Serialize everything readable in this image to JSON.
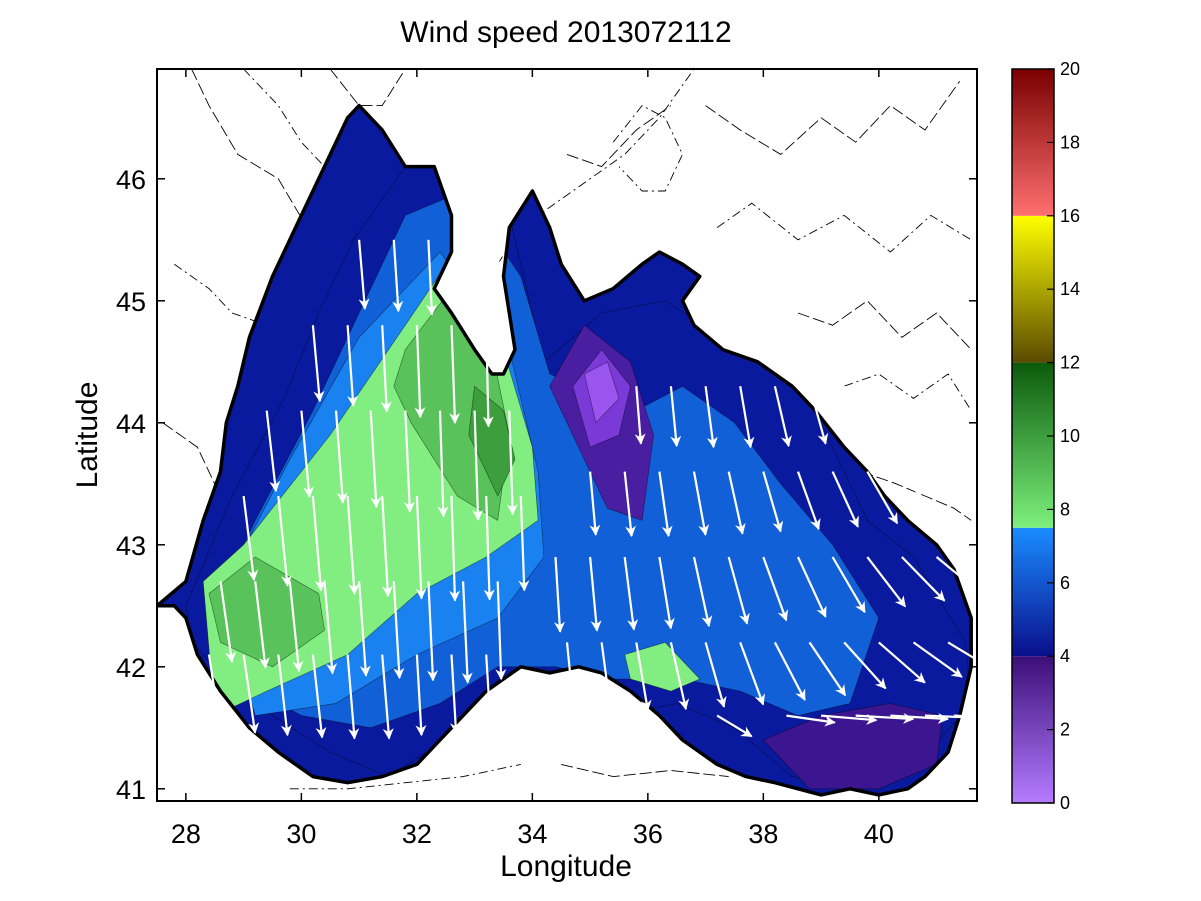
{
  "chart_data": {
    "type": "heatmap",
    "title": "Wind speed 2013072112",
    "xlabel": "Longitude",
    "ylabel": "Latitude",
    "xlim": [
      27.5,
      41.7
    ],
    "ylim": [
      40.9,
      46.9
    ],
    "x_ticks": [
      28,
      30,
      32,
      34,
      36,
      38,
      40
    ],
    "y_ticks": [
      41,
      42,
      43,
      44,
      45,
      46
    ],
    "grid": false,
    "colorbar": {
      "position": "right",
      "range": [
        0,
        20
      ],
      "ticks": [
        0,
        2,
        4,
        6,
        8,
        10,
        12,
        14,
        16,
        18,
        20
      ],
      "bands": [
        {
          "from": 0,
          "to": 4,
          "color_low": "#b57cff",
          "color_high": "#3b0f78"
        },
        {
          "from": 4,
          "to": 7.5,
          "color_low": "#0a0f8c",
          "color_high": "#1a8cff"
        },
        {
          "from": 7.5,
          "to": 12,
          "color_low": "#7df07d",
          "color_high": "#0b5a0b"
        },
        {
          "from": 12,
          "to": 16,
          "color_low": "#5a4a00",
          "color_high": "#ffff00"
        },
        {
          "from": 16,
          "to": 20,
          "color_low": "#ff7070",
          "color_high": "#7a0000"
        }
      ]
    },
    "regions": [
      {
        "level": 4.5,
        "color": "#0a1a9e",
        "lon": [
          28.0,
          28.8,
          29.7,
          30.3,
          30.9,
          31.8,
          32.6,
          33.5,
          34.2,
          35.2,
          36.3,
          37.6,
          38.8,
          39.8,
          40.6,
          41.5,
          41.6,
          40.5,
          39.5,
          38.5,
          37.5,
          36.5,
          35.5,
          34.5,
          33.5,
          32.5,
          31.5,
          30.5,
          29.5,
          28.7,
          28.1
        ],
        "lat": [
          42.5,
          43.4,
          44.2,
          44.9,
          45.5,
          46.1,
          46.3,
          45.9,
          44.5,
          44.9,
          45.0,
          44.6,
          44.2,
          43.2,
          42.9,
          42.2,
          41.7,
          41.1,
          41.0,
          41.1,
          41.5,
          41.7,
          41.6,
          41.9,
          41.8,
          41.4,
          41.1,
          41.3,
          41.6,
          41.9,
          42.2
        ]
      },
      {
        "level": 6,
        "color": "#1160d8",
        "lon": [
          28.4,
          29.2,
          30.2,
          31.0,
          31.8,
          32.8,
          33.8,
          34.3,
          35.8,
          36.6,
          37.5,
          38.3,
          39.2,
          40.0,
          39.5,
          38.6,
          37.6,
          36.6,
          35.4,
          34.4,
          33.4,
          32.4,
          31.2,
          30.0,
          28.9
        ],
        "lat": [
          42.4,
          43.2,
          44.1,
          44.9,
          45.7,
          45.9,
          45.2,
          44.4,
          44.1,
          44.3,
          44.0,
          43.5,
          43.0,
          42.4,
          41.7,
          41.6,
          41.8,
          41.9,
          41.9,
          42.0,
          42.0,
          41.7,
          41.5,
          41.6,
          41.9
        ]
      },
      {
        "level": 7,
        "color": "#1a82f0",
        "lon": [
          28.6,
          29.8,
          31.0,
          32.4,
          33.6,
          34.1,
          34.2,
          33.4,
          32.0,
          30.6,
          29.2
        ],
        "lat": [
          42.6,
          43.7,
          44.7,
          45.4,
          44.6,
          43.6,
          42.9,
          42.4,
          42.1,
          41.7,
          41.6
        ]
      },
      {
        "level": 8,
        "color": "#82ee82",
        "lon": [
          28.3,
          29.0,
          30.5,
          31.8,
          32.8,
          33.5,
          34.0,
          34.1,
          33.2,
          32.0,
          30.8,
          29.4,
          28.5
        ],
        "lat": [
          42.7,
          43.0,
          43.9,
          44.8,
          45.5,
          44.6,
          43.8,
          43.2,
          42.9,
          42.6,
          42.1,
          41.8,
          41.6
        ]
      },
      {
        "level": 9,
        "color": "#5ac25a",
        "lon": [
          31.8,
          32.6,
          33.3,
          33.6,
          33.4,
          32.7,
          31.9,
          31.6
        ],
        "lat": [
          44.6,
          45.1,
          44.6,
          43.9,
          43.2,
          43.4,
          44.0,
          44.3
        ]
      },
      {
        "level": 9.5,
        "color": "#3d9e3d",
        "lon": [
          33.0,
          33.5,
          33.7,
          33.4,
          32.9
        ],
        "lat": [
          44.3,
          44.1,
          43.7,
          43.4,
          43.9
        ]
      },
      {
        "level": 9,
        "color": "#5ac25a",
        "lon": [
          28.4,
          29.2,
          30.3,
          30.4,
          29.5,
          28.6
        ],
        "lat": [
          42.6,
          42.9,
          42.6,
          42.3,
          42.0,
          42.2
        ]
      },
      {
        "level": 8,
        "color": "#82ee82",
        "lon": [
          35.6,
          36.3,
          36.9,
          36.4,
          35.7
        ],
        "lat": [
          42.1,
          42.2,
          41.9,
          41.8,
          41.9
        ]
      },
      {
        "level": 4,
        "color": "#4a1ea0",
        "lon": [
          34.3,
          34.9,
          35.7,
          36.1,
          35.9,
          35.3,
          34.7
        ],
        "lat": [
          44.3,
          44.8,
          44.5,
          43.9,
          43.2,
          43.3,
          43.9
        ]
      },
      {
        "level": 3,
        "color": "#7a3ad8",
        "lon": [
          34.7,
          35.2,
          35.7,
          35.5,
          35.0
        ],
        "lat": [
          44.3,
          44.6,
          44.3,
          43.9,
          43.8
        ]
      },
      {
        "level": 2,
        "color": "#9955ee",
        "lon": [
          34.9,
          35.3,
          35.5,
          35.1
        ],
        "lat": [
          44.4,
          44.5,
          44.2,
          44.0
        ]
      },
      {
        "level": 3.5,
        "color": "#3b1690",
        "lon": [
          38.0,
          39.0,
          40.2,
          41.1,
          41.0,
          40.0,
          38.8
        ],
        "lat": [
          41.4,
          41.6,
          41.7,
          41.6,
          41.2,
          41.0,
          41.0
        ]
      },
      {
        "level": 3.8,
        "color": "#3c15a0",
        "lon": [
          28.0,
          28.2,
          28.4,
          28.1
        ],
        "lat": [
          44.6,
          44.8,
          44.3,
          44.2
        ]
      }
    ],
    "coastline": {
      "lon": [
        27.5,
        28.0,
        28.3,
        28.6,
        28.7,
        28.9,
        29.1,
        29.5,
        29.8,
        30.2,
        30.6,
        30.8,
        31.0,
        31.4,
        31.8,
        32.3,
        32.6,
        32.6,
        32.3,
        32.6,
        33.0,
        33.3,
        33.5,
        33.7,
        33.6,
        33.5,
        33.6,
        34.0,
        34.3,
        34.5,
        34.9,
        35.4,
        35.9,
        36.2,
        36.6,
        36.9,
        36.6,
        36.8,
        37.3,
        37.9,
        38.5,
        38.9,
        39.4,
        39.8,
        40.1,
        40.5,
        41.0,
        41.3,
        41.6,
        41.6,
        41.4,
        41.2,
        40.8,
        40.5,
        40.0,
        39.5,
        39.0,
        38.6,
        38.2,
        37.7,
        37.2,
        36.6,
        36.2,
        35.7,
        35.2,
        34.8,
        34.3,
        33.8,
        33.2,
        32.6,
        32.0,
        31.4,
        30.8,
        30.2,
        29.6,
        29.1,
        28.6,
        28.2,
        28.0,
        27.8,
        27.5
      ],
      "lat": [
        42.5,
        42.7,
        43.2,
        43.6,
        44.0,
        44.3,
        44.7,
        45.2,
        45.5,
        45.9,
        46.3,
        46.5,
        46.6,
        46.4,
        46.1,
        46.1,
        45.7,
        45.4,
        45.1,
        44.9,
        44.6,
        44.4,
        44.4,
        44.6,
        44.9,
        45.2,
        45.6,
        45.9,
        45.6,
        45.3,
        45.0,
        45.1,
        45.3,
        45.4,
        45.3,
        45.2,
        45.0,
        44.8,
        44.6,
        44.5,
        44.3,
        44.1,
        43.8,
        43.6,
        43.4,
        43.2,
        43.0,
        42.8,
        42.4,
        42.0,
        41.6,
        41.3,
        41.1,
        41.0,
        40.95,
        41.0,
        40.95,
        41.0,
        41.05,
        41.1,
        41.2,
        41.4,
        41.6,
        41.8,
        41.95,
        42.0,
        41.95,
        42.0,
        41.8,
        41.5,
        41.2,
        41.1,
        41.05,
        41.1,
        41.3,
        41.5,
        41.8,
        42.1,
        42.4,
        42.5,
        42.5
      ]
    },
    "wind_vectors": {
      "note": "unit: m/s (u east, v north)",
      "lon": [
        28.4,
        29.0,
        29.6,
        30.2,
        30.8,
        31.4,
        32.0,
        32.6,
        33.2,
        28.6,
        29.2,
        29.8,
        30.4,
        31.0,
        31.6,
        32.2,
        32.8,
        33.4,
        29.0,
        29.6,
        30.2,
        30.8,
        31.4,
        32.0,
        32.6,
        33.2,
        33.8,
        29.4,
        30.0,
        30.6,
        31.2,
        31.8,
        32.4,
        33.0,
        33.6,
        30.2,
        30.8,
        31.4,
        32.0,
        32.6,
        33.2,
        31.0,
        31.6,
        32.2,
        32.8,
        33.4,
        34.6,
        35.2,
        35.8,
        36.4,
        37.0,
        37.6,
        38.2,
        38.8,
        39.4,
        40.0,
        40.6,
        41.2,
        34.4,
        35.0,
        35.6,
        36.2,
        36.8,
        37.4,
        38.0,
        38.6,
        39.2,
        39.8,
        40.4,
        41.0,
        35.0,
        35.6,
        36.2,
        36.8,
        37.4,
        38.0,
        38.6,
        39.2,
        39.8,
        40.4,
        35.8,
        36.4,
        37.0,
        37.6,
        38.2,
        38.8,
        39.4,
        40.0,
        37.2,
        38.4,
        39.0,
        39.6,
        40.2,
        40.8,
        41.3
      ],
      "lat": [
        42.1,
        42.1,
        42.1,
        42.1,
        42.1,
        42.1,
        42.1,
        42.1,
        42.1,
        42.7,
        42.7,
        42.7,
        42.7,
        42.7,
        42.7,
        42.7,
        42.7,
        42.7,
        43.4,
        43.4,
        43.4,
        43.4,
        43.4,
        43.4,
        43.4,
        43.4,
        43.4,
        44.1,
        44.1,
        44.1,
        44.1,
        44.1,
        44.1,
        44.1,
        44.1,
        44.8,
        44.8,
        44.8,
        44.8,
        44.8,
        44.8,
        45.5,
        45.5,
        45.5,
        45.5,
        45.5,
        42.2,
        42.2,
        42.2,
        42.2,
        42.2,
        42.2,
        42.2,
        42.2,
        42.2,
        42.2,
        42.2,
        42.2,
        42.9,
        42.9,
        42.9,
        42.9,
        42.9,
        42.9,
        42.9,
        42.9,
        42.9,
        42.9,
        42.9,
        42.9,
        43.6,
        43.6,
        43.6,
        43.6,
        43.6,
        43.6,
        43.6,
        43.6,
        43.6,
        43.6,
        44.3,
        44.3,
        44.3,
        44.3,
        44.3,
        44.3,
        44.3,
        44.3,
        41.6,
        41.6,
        41.6,
        41.6,
        41.6,
        41.6,
        41.6
      ],
      "u": [
        1.0,
        1.0,
        0.8,
        0.8,
        0.6,
        0.6,
        0.4,
        0.4,
        0.4,
        1.0,
        0.9,
        0.8,
        0.7,
        0.6,
        0.5,
        0.4,
        0.4,
        0.3,
        0.9,
        0.8,
        0.7,
        0.6,
        0.5,
        0.4,
        0.3,
        0.3,
        0.3,
        0.8,
        0.7,
        0.6,
        0.5,
        0.4,
        0.3,
        0.3,
        0.3,
        0.6,
        0.5,
        0.4,
        0.3,
        0.3,
        0.2,
        0.5,
        0.4,
        0.3,
        0.2,
        0.2,
        0.6,
        0.8,
        1.0,
        1.3,
        1.6,
        2.0,
        2.6,
        3.1,
        3.6,
        4.0,
        4.2,
        4.3,
        0.4,
        0.6,
        0.8,
        1.0,
        1.3,
        1.6,
        2.0,
        2.4,
        2.8,
        3.3,
        3.7,
        4.0,
        0.5,
        0.6,
        0.8,
        1.0,
        1.2,
        1.5,
        1.8,
        2.2,
        2.6,
        3.0,
        0.4,
        0.5,
        0.7,
        0.9,
        1.2,
        1.4,
        1.7,
        2.0,
        3.0,
        4.2,
        4.8,
        5.0,
        5.0,
        4.8,
        4.5
      ],
      "v": [
        -6.5,
        -6.8,
        -7.0,
        -7.2,
        -7.3,
        -7.3,
        -7.0,
        -6.8,
        -6.5,
        -7.0,
        -7.5,
        -7.8,
        -8.0,
        -8.2,
        -8.4,
        -8.6,
        -8.8,
        -8.5,
        -7.3,
        -7.8,
        -8.2,
        -8.5,
        -8.7,
        -8.9,
        -9.1,
        -9.0,
        -8.2,
        -7.0,
        -7.5,
        -8.0,
        -8.4,
        -8.8,
        -9.2,
        -9.5,
        -9.0,
        -6.6,
        -7.0,
        -7.5,
        -8.0,
        -8.5,
        -8.8,
        -6.0,
        -6.2,
        -6.5,
        -6.8,
        -7.0,
        -6.0,
        -6.0,
        -5.9,
        -5.8,
        -5.6,
        -5.4,
        -5.0,
        -4.6,
        -4.0,
        -3.5,
        -3.0,
        -2.6,
        -6.5,
        -6.4,
        -6.3,
        -6.2,
        -6.0,
        -5.8,
        -5.5,
        -5.2,
        -4.8,
        -4.3,
        -3.8,
        -3.3,
        -5.5,
        -5.6,
        -5.6,
        -5.5,
        -5.4,
        -5.2,
        -5.0,
        -4.8,
        -4.5,
        -4.1,
        -5.0,
        -5.2,
        -5.3,
        -5.3,
        -5.2,
        -5.0,
        -4.8,
        -4.5,
        -1.8,
        -0.6,
        -0.4,
        -0.3,
        -0.3,
        -0.2,
        -0.2
      ]
    },
    "land_contours": [
      {
        "lon": [
          28.1,
          28.4,
          28.9,
          29.6,
          30.1,
          30.4,
          30.9
        ],
        "lat": [
          46.9,
          46.6,
          46.2,
          46.0,
          45.6,
          45.5,
          45.4
        ]
      },
      {
        "lon": [
          27.8,
          28.4,
          28.8,
          29.4,
          29.8,
          30.1
        ],
        "lat": [
          45.3,
          45.1,
          44.9,
          44.8,
          44.6,
          44.4
        ]
      },
      {
        "lon": [
          27.6,
          28.2,
          28.5
        ],
        "lat": [
          44.0,
          43.8,
          43.5
        ]
      },
      {
        "lon": [
          29.0,
          29.6,
          30.0,
          30.4
        ],
        "lat": [
          46.9,
          46.6,
          46.3,
          46.1
        ]
      },
      {
        "lon": [
          30.5,
          31.0,
          31.4,
          31.8
        ],
        "lat": [
          46.9,
          46.6,
          46.6,
          46.9
        ]
      },
      {
        "lon": [
          33.4,
          33.8,
          34.4,
          35.0,
          35.6,
          36.2,
          36.8
        ],
        "lat": [
          45.3,
          45.6,
          45.8,
          46.0,
          46.2,
          46.5,
          46.9
        ]
      },
      {
        "lon": [
          34.6,
          35.2,
          35.8,
          36.4
        ],
        "lat": [
          46.2,
          46.1,
          46.4,
          46.6
        ]
      },
      {
        "lon": [
          35.4,
          35.9,
          36.3,
          36.6,
          36.3,
          35.9,
          35.5
        ],
        "lat": [
          46.3,
          46.6,
          46.5,
          46.2,
          45.9,
          45.9,
          46.1
        ]
      },
      {
        "lon": [
          37.0,
          37.6,
          38.3,
          39.0,
          39.6,
          40.2,
          40.8,
          41.4
        ],
        "lat": [
          46.6,
          46.4,
          46.2,
          46.5,
          46.3,
          46.6,
          46.4,
          46.8
        ]
      },
      {
        "lon": [
          37.2,
          37.8,
          38.6,
          39.4,
          40.2,
          40.9,
          41.6
        ],
        "lat": [
          45.6,
          45.8,
          45.5,
          45.7,
          45.4,
          45.7,
          45.5
        ]
      },
      {
        "lon": [
          38.6,
          39.2,
          39.8,
          40.4,
          41.0,
          41.6
        ],
        "lat": [
          44.9,
          44.8,
          45.0,
          44.7,
          44.9,
          44.6
        ]
      },
      {
        "lon": [
          39.4,
          40.0,
          40.6,
          41.2,
          41.6
        ],
        "lat": [
          44.3,
          44.4,
          44.2,
          44.4,
          44.1
        ]
      },
      {
        "lon": [
          39.7,
          40.3,
          40.8,
          41.3,
          41.6
        ],
        "lat": [
          43.6,
          43.5,
          43.4,
          43.3,
          43.2
        ]
      },
      {
        "lon": [
          29.8,
          30.8,
          31.8,
          32.8,
          33.8
        ],
        "lat": [
          41.0,
          41.0,
          41.05,
          41.1,
          41.2
        ]
      },
      {
        "lon": [
          34.5,
          35.4,
          36.4,
          37.4
        ],
        "lat": [
          41.2,
          41.1,
          41.15,
          41.1
        ]
      }
    ]
  }
}
